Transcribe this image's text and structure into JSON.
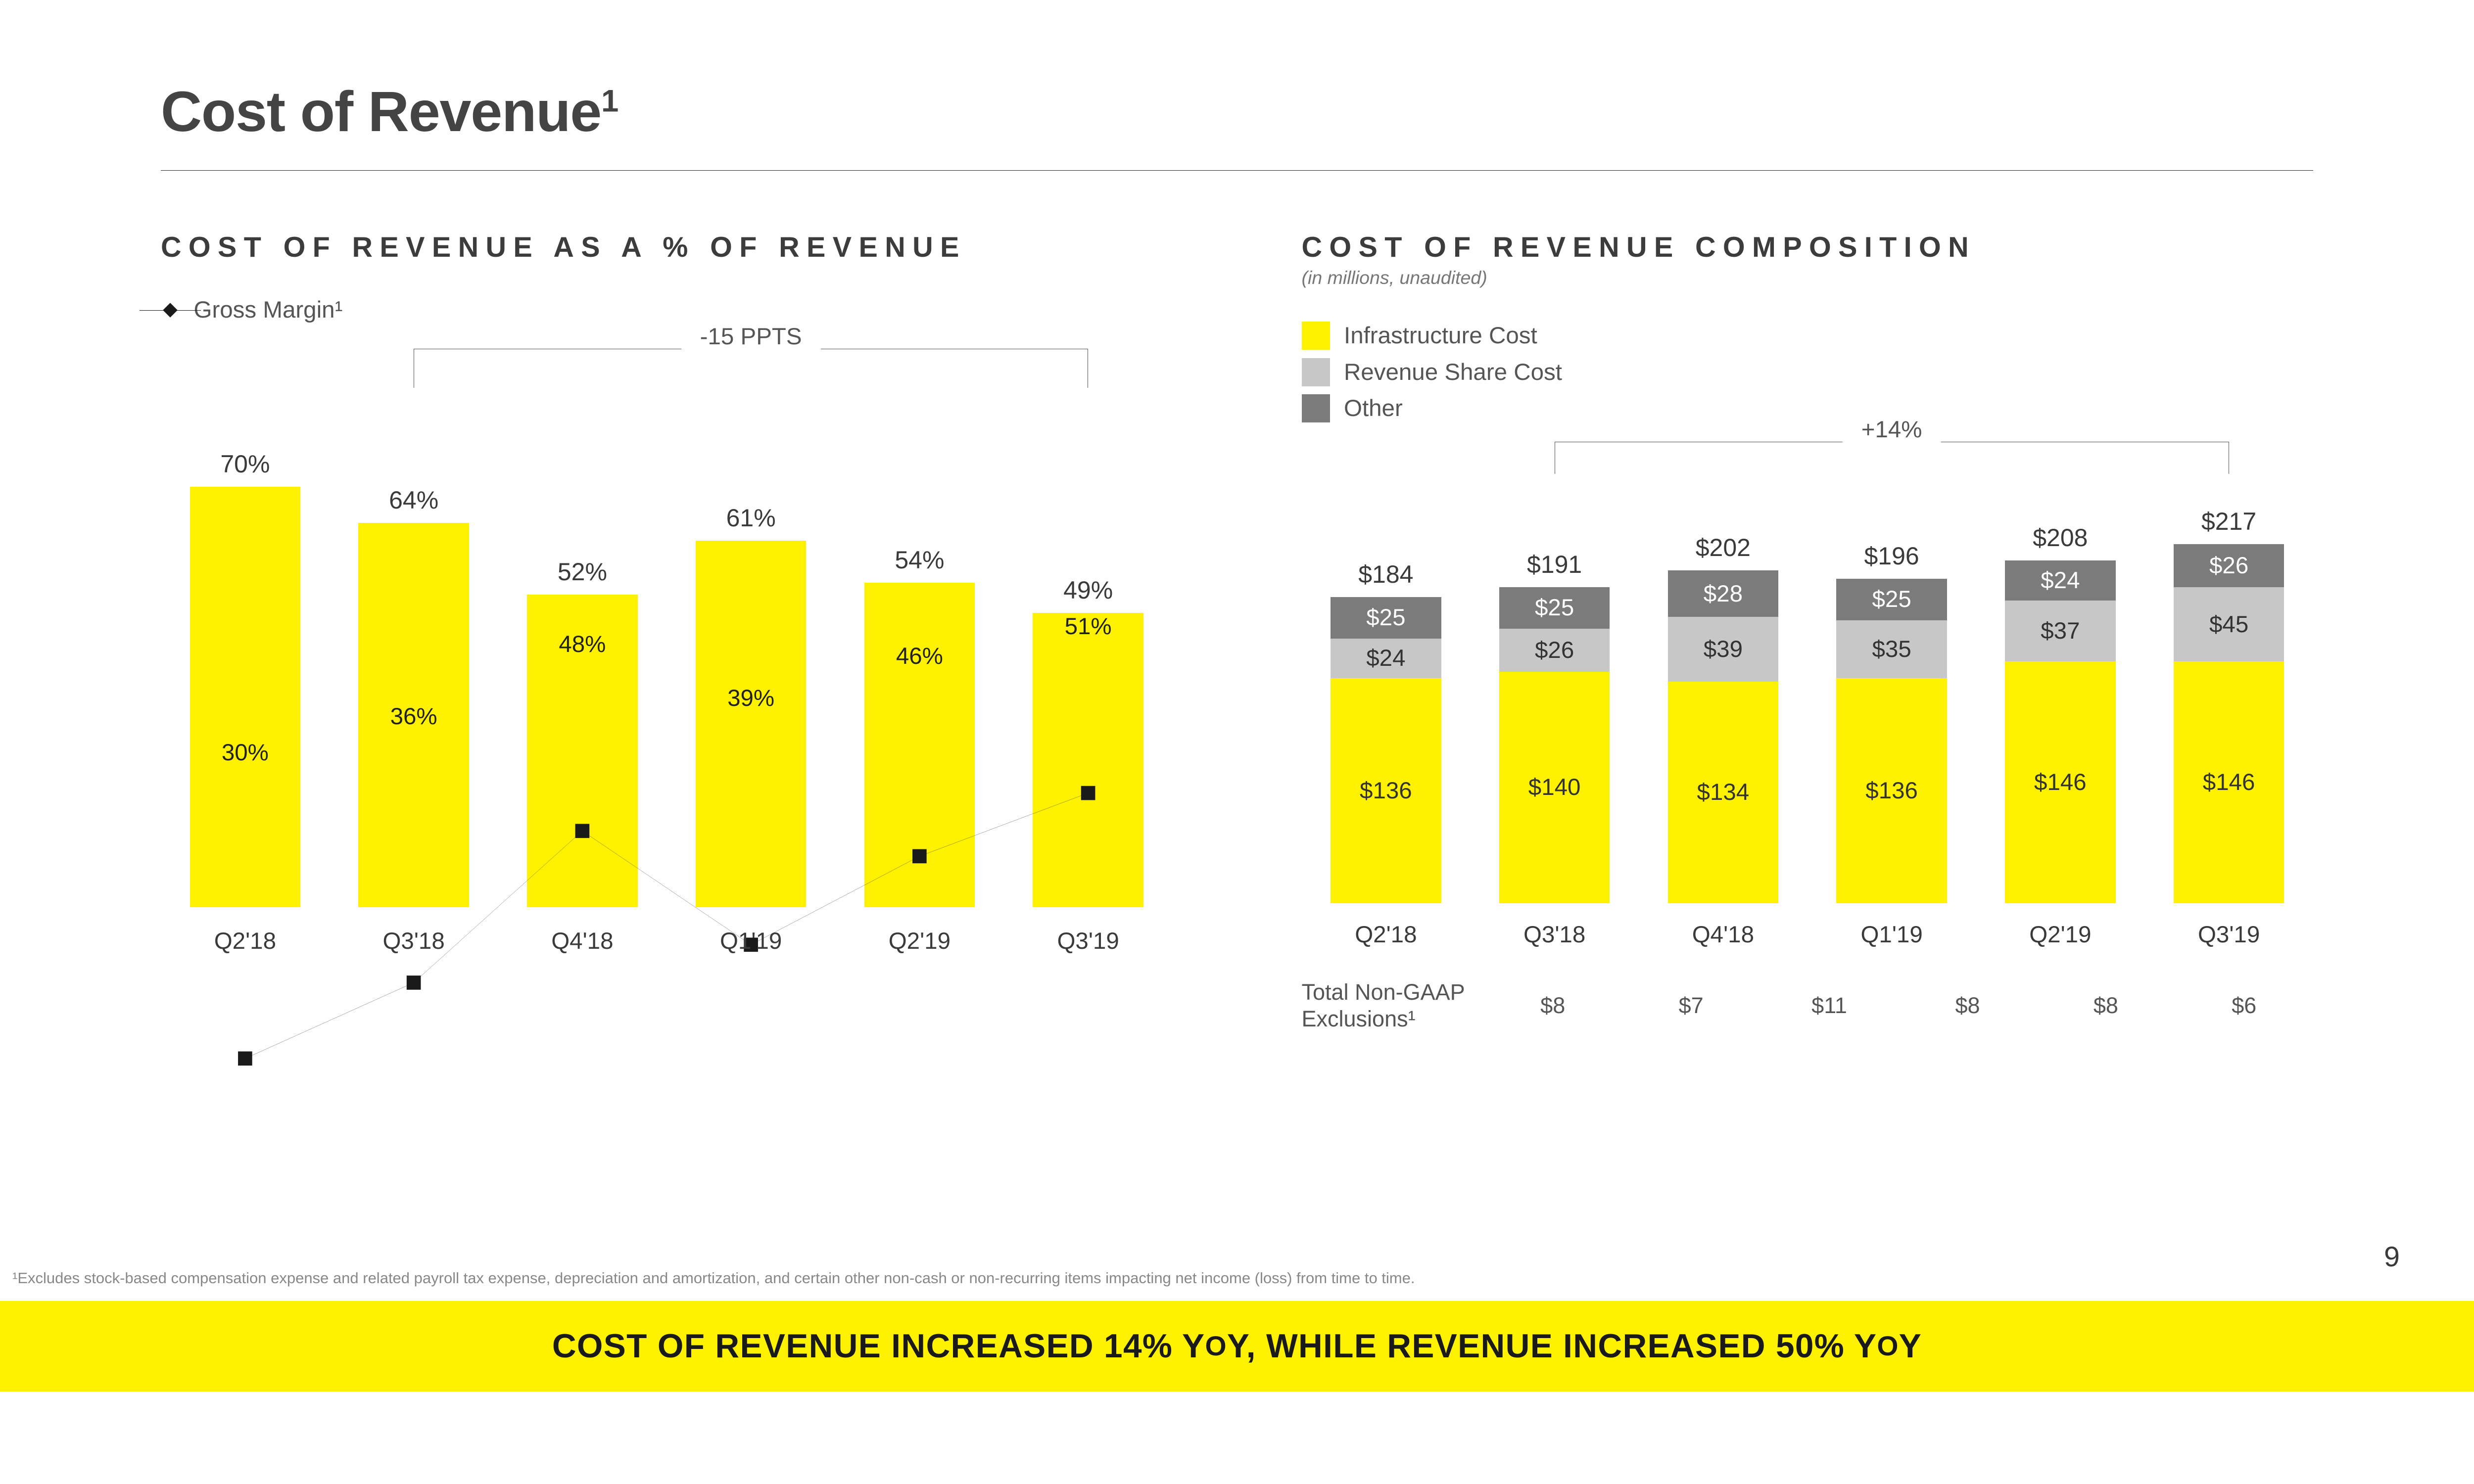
{
  "page": {
    "title": "Cost of Revenue",
    "title_sup": "1",
    "page_number": "9",
    "footnote": "¹Excludes stock-based compensation expense and related payroll tax expense, depreciation and amortization, and certain other non-cash or non-recurring items impacting net income (loss) from time to time.",
    "banner_text_parts": [
      "COST OF REVENUE INCREASED 14% Y",
      "O",
      "Y, WHILE REVENUE INCREASED 50% Y",
      "O",
      "Y"
    ],
    "banner_bg": "#fff200",
    "banner_color": "#1a1a1a"
  },
  "colors": {
    "yellow": "#fff200",
    "grey_light": "#c7c7c7",
    "grey_dark": "#7b7b7b",
    "line": "#1a1a1a",
    "text": "#3a3a3a"
  },
  "chart1": {
    "subtitle": "COST OF REVENUE AS A % OF REVENUE",
    "legend_label": "Gross Margin¹",
    "bracket_label": "-15 PPTS",
    "bracket_from_idx": 1,
    "bracket_to_idx": 5,
    "ymax": 80,
    "categories": [
      "Q2'18",
      "Q3'18",
      "Q4'18",
      "Q1'19",
      "Q2'19",
      "Q3'19"
    ],
    "bar_values": [
      70,
      64,
      52,
      61,
      54,
      49
    ],
    "bar_labels": [
      "70%",
      "64%",
      "52%",
      "61%",
      "54%",
      "49%"
    ],
    "bar_color": "#fff200",
    "line_values": [
      30,
      36,
      48,
      39,
      46,
      51
    ],
    "line_labels": [
      "30%",
      "36%",
      "48%",
      "39%",
      "46%",
      "51%"
    ],
    "line_color": "#1a1a1a"
  },
  "chart2": {
    "subtitle": "COST OF REVENUE COMPOSITION",
    "subtitle_note": "(in millions, unaudited)",
    "legend": [
      {
        "label": "Infrastructure Cost",
        "color": "#fff200"
      },
      {
        "label": "Revenue Share Cost",
        "color": "#c7c7c7"
      },
      {
        "label": "Other",
        "color": "#7b7b7b"
      }
    ],
    "bracket_label": "+14%",
    "bracket_from_idx": 1,
    "bracket_to_idx": 5,
    "ymax": 240,
    "categories": [
      "Q2'18",
      "Q3'18",
      "Q4'18",
      "Q1'19",
      "Q2'19",
      "Q3'19"
    ],
    "stacks": [
      {
        "total": "$184",
        "segs": [
          {
            "v": 136,
            "l": "$136",
            "c": "#fff200"
          },
          {
            "v": 24,
            "l": "$24",
            "c": "#c7c7c7"
          },
          {
            "v": 25,
            "l": "$25",
            "c": "#7b7b7b"
          }
        ]
      },
      {
        "total": "$191",
        "segs": [
          {
            "v": 140,
            "l": "$140",
            "c": "#fff200"
          },
          {
            "v": 26,
            "l": "$26",
            "c": "#c7c7c7"
          },
          {
            "v": 25,
            "l": "$25",
            "c": "#7b7b7b"
          }
        ]
      },
      {
        "total": "$202",
        "segs": [
          {
            "v": 134,
            "l": "$134",
            "c": "#fff200"
          },
          {
            "v": 39,
            "l": "$39",
            "c": "#c7c7c7"
          },
          {
            "v": 28,
            "l": "$28",
            "c": "#7b7b7b"
          }
        ]
      },
      {
        "total": "$196",
        "segs": [
          {
            "v": 136,
            "l": "$136",
            "c": "#fff200"
          },
          {
            "v": 35,
            "l": "$35",
            "c": "#c7c7c7"
          },
          {
            "v": 25,
            "l": "$25",
            "c": "#7b7b7b"
          }
        ]
      },
      {
        "total": "$208",
        "segs": [
          {
            "v": 146,
            "l": "$146",
            "c": "#fff200"
          },
          {
            "v": 37,
            "l": "$37",
            "c": "#c7c7c7"
          },
          {
            "v": 24,
            "l": "$24",
            "c": "#7b7b7b"
          }
        ]
      },
      {
        "total": "$217",
        "segs": [
          {
            "v": 146,
            "l": "$146",
            "c": "#fff200"
          },
          {
            "v": 45,
            "l": "$45",
            "c": "#c7c7c7"
          },
          {
            "v": 26,
            "l": "$26",
            "c": "#7b7b7b"
          }
        ]
      }
    ],
    "exclusions_label": "Total Non-GAAP Exclusions¹",
    "exclusions": [
      "$8",
      "$7",
      "$11",
      "$8",
      "$8",
      "$6"
    ]
  }
}
